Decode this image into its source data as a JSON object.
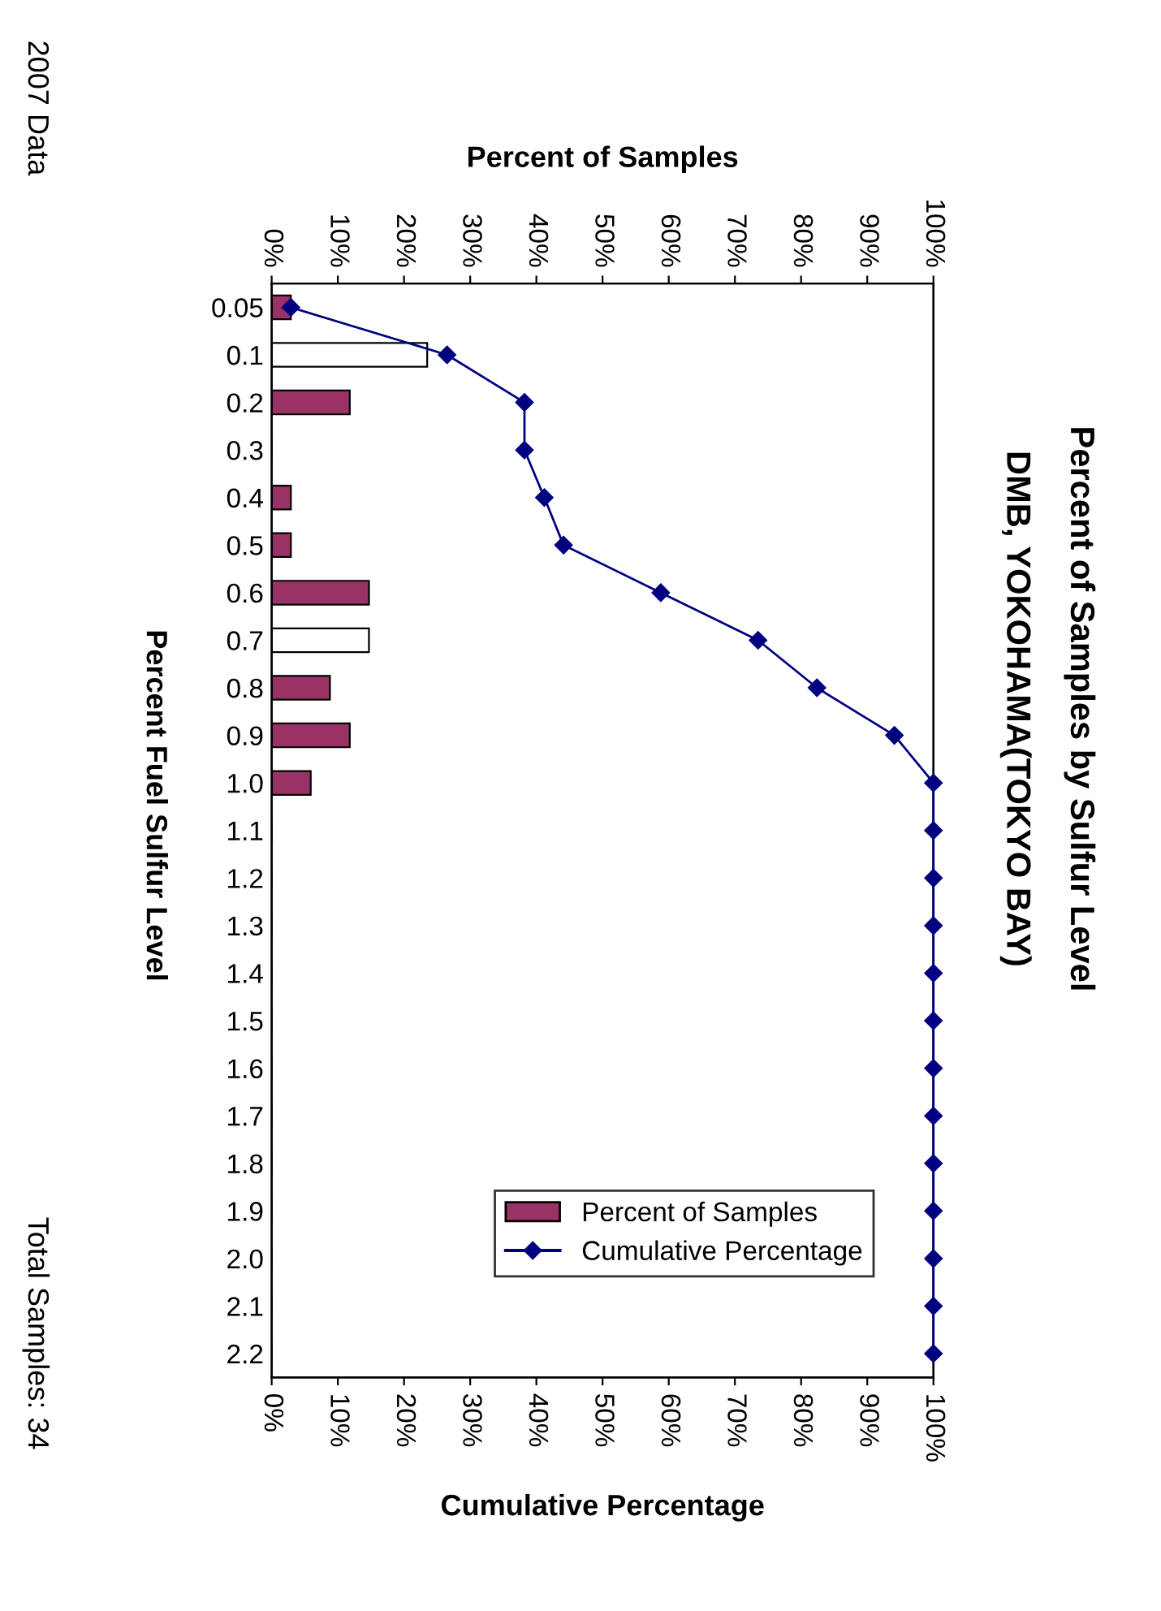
{
  "chart_data": {
    "type": "bar",
    "orientation": "horizontal",
    "title": "Percent of Samples by Sulfur Level",
    "subtitle": "DMB, YOKOHAMA(TOKYO BAY)",
    "ylabel": "Percent Fuel Sulfur Level",
    "x2label": "Percent of Samples",
    "xlabel": "Cumulative Percentage",
    "categories": [
      "0.05",
      "0.1",
      "0.2",
      "0.3",
      "0.4",
      "0.5",
      "0.6",
      "0.7",
      "0.8",
      "0.9",
      "1.0",
      "1.1",
      "1.2",
      "1.3",
      "1.4",
      "1.5",
      "1.6",
      "1.7",
      "1.8",
      "1.9",
      "2.0",
      "2.1",
      "2.2"
    ],
    "series": [
      {
        "name": "Percent of Samples",
        "axis": "x2",
        "color": "#993366",
        "colors": [
          "#993366",
          "#ffffff",
          "#993366",
          "#993366",
          "#993366",
          "#993366",
          "#993366",
          "#ffffff",
          "#993366",
          "#993366",
          "#993366",
          "#993366",
          "#993366",
          "#993366",
          "#993366",
          "#993366",
          "#993366",
          "#993366",
          "#993366",
          "#993366",
          "#993366",
          "#993366",
          "#993366"
        ],
        "values": [
          2.9,
          23.5,
          11.8,
          0,
          2.9,
          2.9,
          14.7,
          14.7,
          8.8,
          11.8,
          5.9,
          0,
          0,
          0,
          0,
          0,
          0,
          0,
          0,
          0,
          0,
          0,
          0
        ]
      },
      {
        "name": "Cumulative Percentage",
        "type": "line",
        "color": "#000080",
        "marker": "diamond",
        "values": [
          2.9,
          26.5,
          38.2,
          38.2,
          41.2,
          44.1,
          58.8,
          73.5,
          82.4,
          94.1,
          100,
          100,
          100,
          100,
          100,
          100,
          100,
          100,
          100,
          100,
          100,
          100,
          100
        ]
      }
    ],
    "x2lim": [
      0,
      100
    ],
    "x2ticks": [
      {
        "value": 0,
        "label": "0%"
      },
      {
        "value": 10,
        "label": "10%"
      },
      {
        "value": 20,
        "label": "20%"
      },
      {
        "value": 30,
        "label": "30%"
      },
      {
        "value": 40,
        "label": "40%"
      },
      {
        "value": 50,
        "label": "50%"
      },
      {
        "value": 60,
        "label": "60%"
      },
      {
        "value": 70,
        "label": "70%"
      },
      {
        "value": 80,
        "label": "80%"
      },
      {
        "value": 90,
        "label": "90%"
      },
      {
        "value": 100,
        "label": "100%"
      }
    ],
    "xlim": [
      0,
      100
    ],
    "xticks": [
      {
        "value": 0,
        "label": "0%"
      },
      {
        "value": 10,
        "label": "10%"
      },
      {
        "value": 20,
        "label": "20%"
      },
      {
        "value": 30,
        "label": "30%"
      },
      {
        "value": 40,
        "label": "40%"
      },
      {
        "value": 50,
        "label": "50%"
      },
      {
        "value": 60,
        "label": "60%"
      },
      {
        "value": 70,
        "label": "70%"
      },
      {
        "value": 80,
        "label": "80%"
      },
      {
        "value": 90,
        "label": "90%"
      },
      {
        "value": 100,
        "label": "100%"
      }
    ],
    "legend": "bottom right",
    "grid": false,
    "annotations": [
      "2007 Data",
      "Total Samples: 34"
    ]
  }
}
